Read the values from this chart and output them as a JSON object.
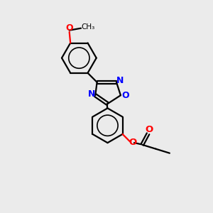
{
  "background_color": "#ebebeb",
  "bond_color": "#000000",
  "n_color": "#0000ff",
  "o_color": "#ff0000",
  "line_width": 1.6,
  "figsize": [
    3.0,
    3.0
  ],
  "dpi": 100,
  "xlim": [
    0,
    10
  ],
  "ylim": [
    0,
    10
  ]
}
